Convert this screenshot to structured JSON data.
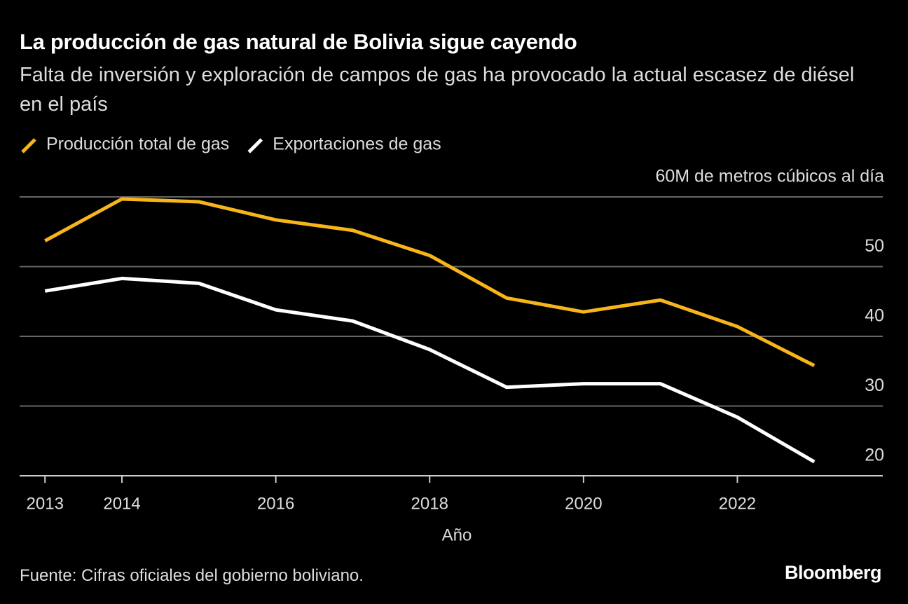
{
  "chart_data": {
    "type": "line",
    "title": "La producción de gas natural de Bolivia sigue cayendo",
    "subtitle": "Falta de inversión y exploración de campos de gas ha provocado la actual escasez de diésel en el país",
    "x": [
      2013,
      2014,
      2015,
      2016,
      2017,
      2018,
      2019,
      2020,
      2021,
      2022,
      2023
    ],
    "series": [
      {
        "name": "Producción total de gas",
        "color": "#f7b519",
        "values": [
          53.7,
          59.7,
          59.3,
          56.7,
          55.2,
          51.6,
          45.5,
          43.5,
          45.2,
          41.4,
          35.8
        ]
      },
      {
        "name": "Exportaciones de gas",
        "color": "#ffffff",
        "values": [
          46.5,
          48.3,
          47.6,
          43.8,
          42.2,
          38.1,
          32.7,
          33.2,
          33.2,
          28.4,
          22.0
        ]
      }
    ],
    "xlim": [
      2012.67,
      2023.89
    ],
    "xticks": [
      2013,
      2014,
      2016,
      2018,
      2020,
      2022
    ],
    "ylim": [
      20,
      60
    ],
    "yticks": [
      20,
      30,
      40,
      50,
      {
        "value": 60,
        "label": "60M de metros cúbicos al día"
      }
    ],
    "x_label": "Año",
    "grid": true,
    "source": "Fuente: Cifras oficiales del gobierno boliviano.",
    "brand": "Bloomberg"
  }
}
